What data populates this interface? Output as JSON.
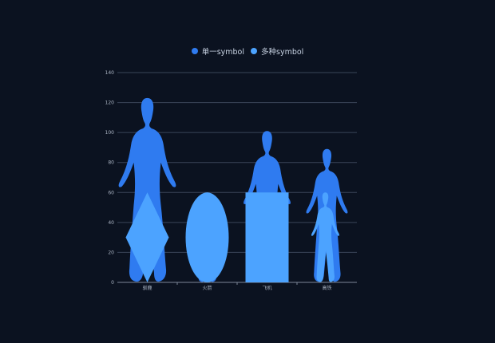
{
  "chart_data": {
    "type": "bar",
    "categories": [
      "驯鹿",
      "火箭",
      "飞机",
      "高铁"
    ],
    "series": [
      {
        "name": "单一symbol",
        "symbol": "person",
        "color": "#2f7bf0",
        "values": [
          123,
          60,
          101,
          89
        ]
      },
      {
        "name": "多种symbol",
        "symbols": [
          "diamond",
          "ellipse",
          "rect",
          "person"
        ],
        "color": "#4ca3ff",
        "values": [
          60,
          60,
          60,
          60
        ]
      }
    ],
    "ylim": [
      0,
      140
    ],
    "yticks": [
      0,
      20,
      40,
      60,
      80,
      100,
      120,
      140
    ],
    "grid": true,
    "legend_position": "top-center",
    "title": "",
    "xlabel": "",
    "ylabel": ""
  },
  "colors": {
    "background": "#0b1220",
    "grid": "#3a4558",
    "axis": "#7c8799",
    "text": "#aab4c3"
  }
}
